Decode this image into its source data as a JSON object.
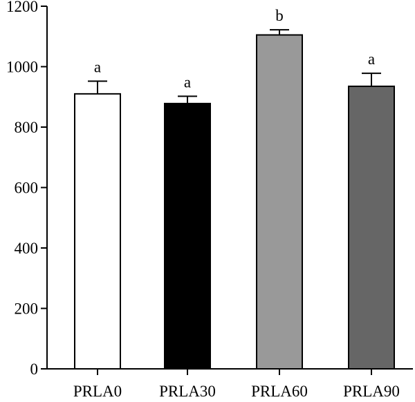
{
  "chart_data": {
    "type": "bar",
    "title": "",
    "xlabel": "",
    "ylabel": "",
    "categories": [
      "PRLA0",
      "PRLA30",
      "PRLA60",
      "PRLA90"
    ],
    "values": [
      910,
      878,
      1105,
      935
    ],
    "errors": [
      42,
      24,
      17,
      43
    ],
    "significance_labels": [
      "a",
      "a",
      "b",
      "a"
    ],
    "bar_colors": [
      "#ffffff",
      "#000000",
      "#999999",
      "#666666"
    ],
    "ylim": [
      0,
      1200
    ],
    "yticks": [
      0,
      200,
      400,
      600,
      800,
      1000,
      1200
    ],
    "grid": false,
    "legend": "none"
  }
}
